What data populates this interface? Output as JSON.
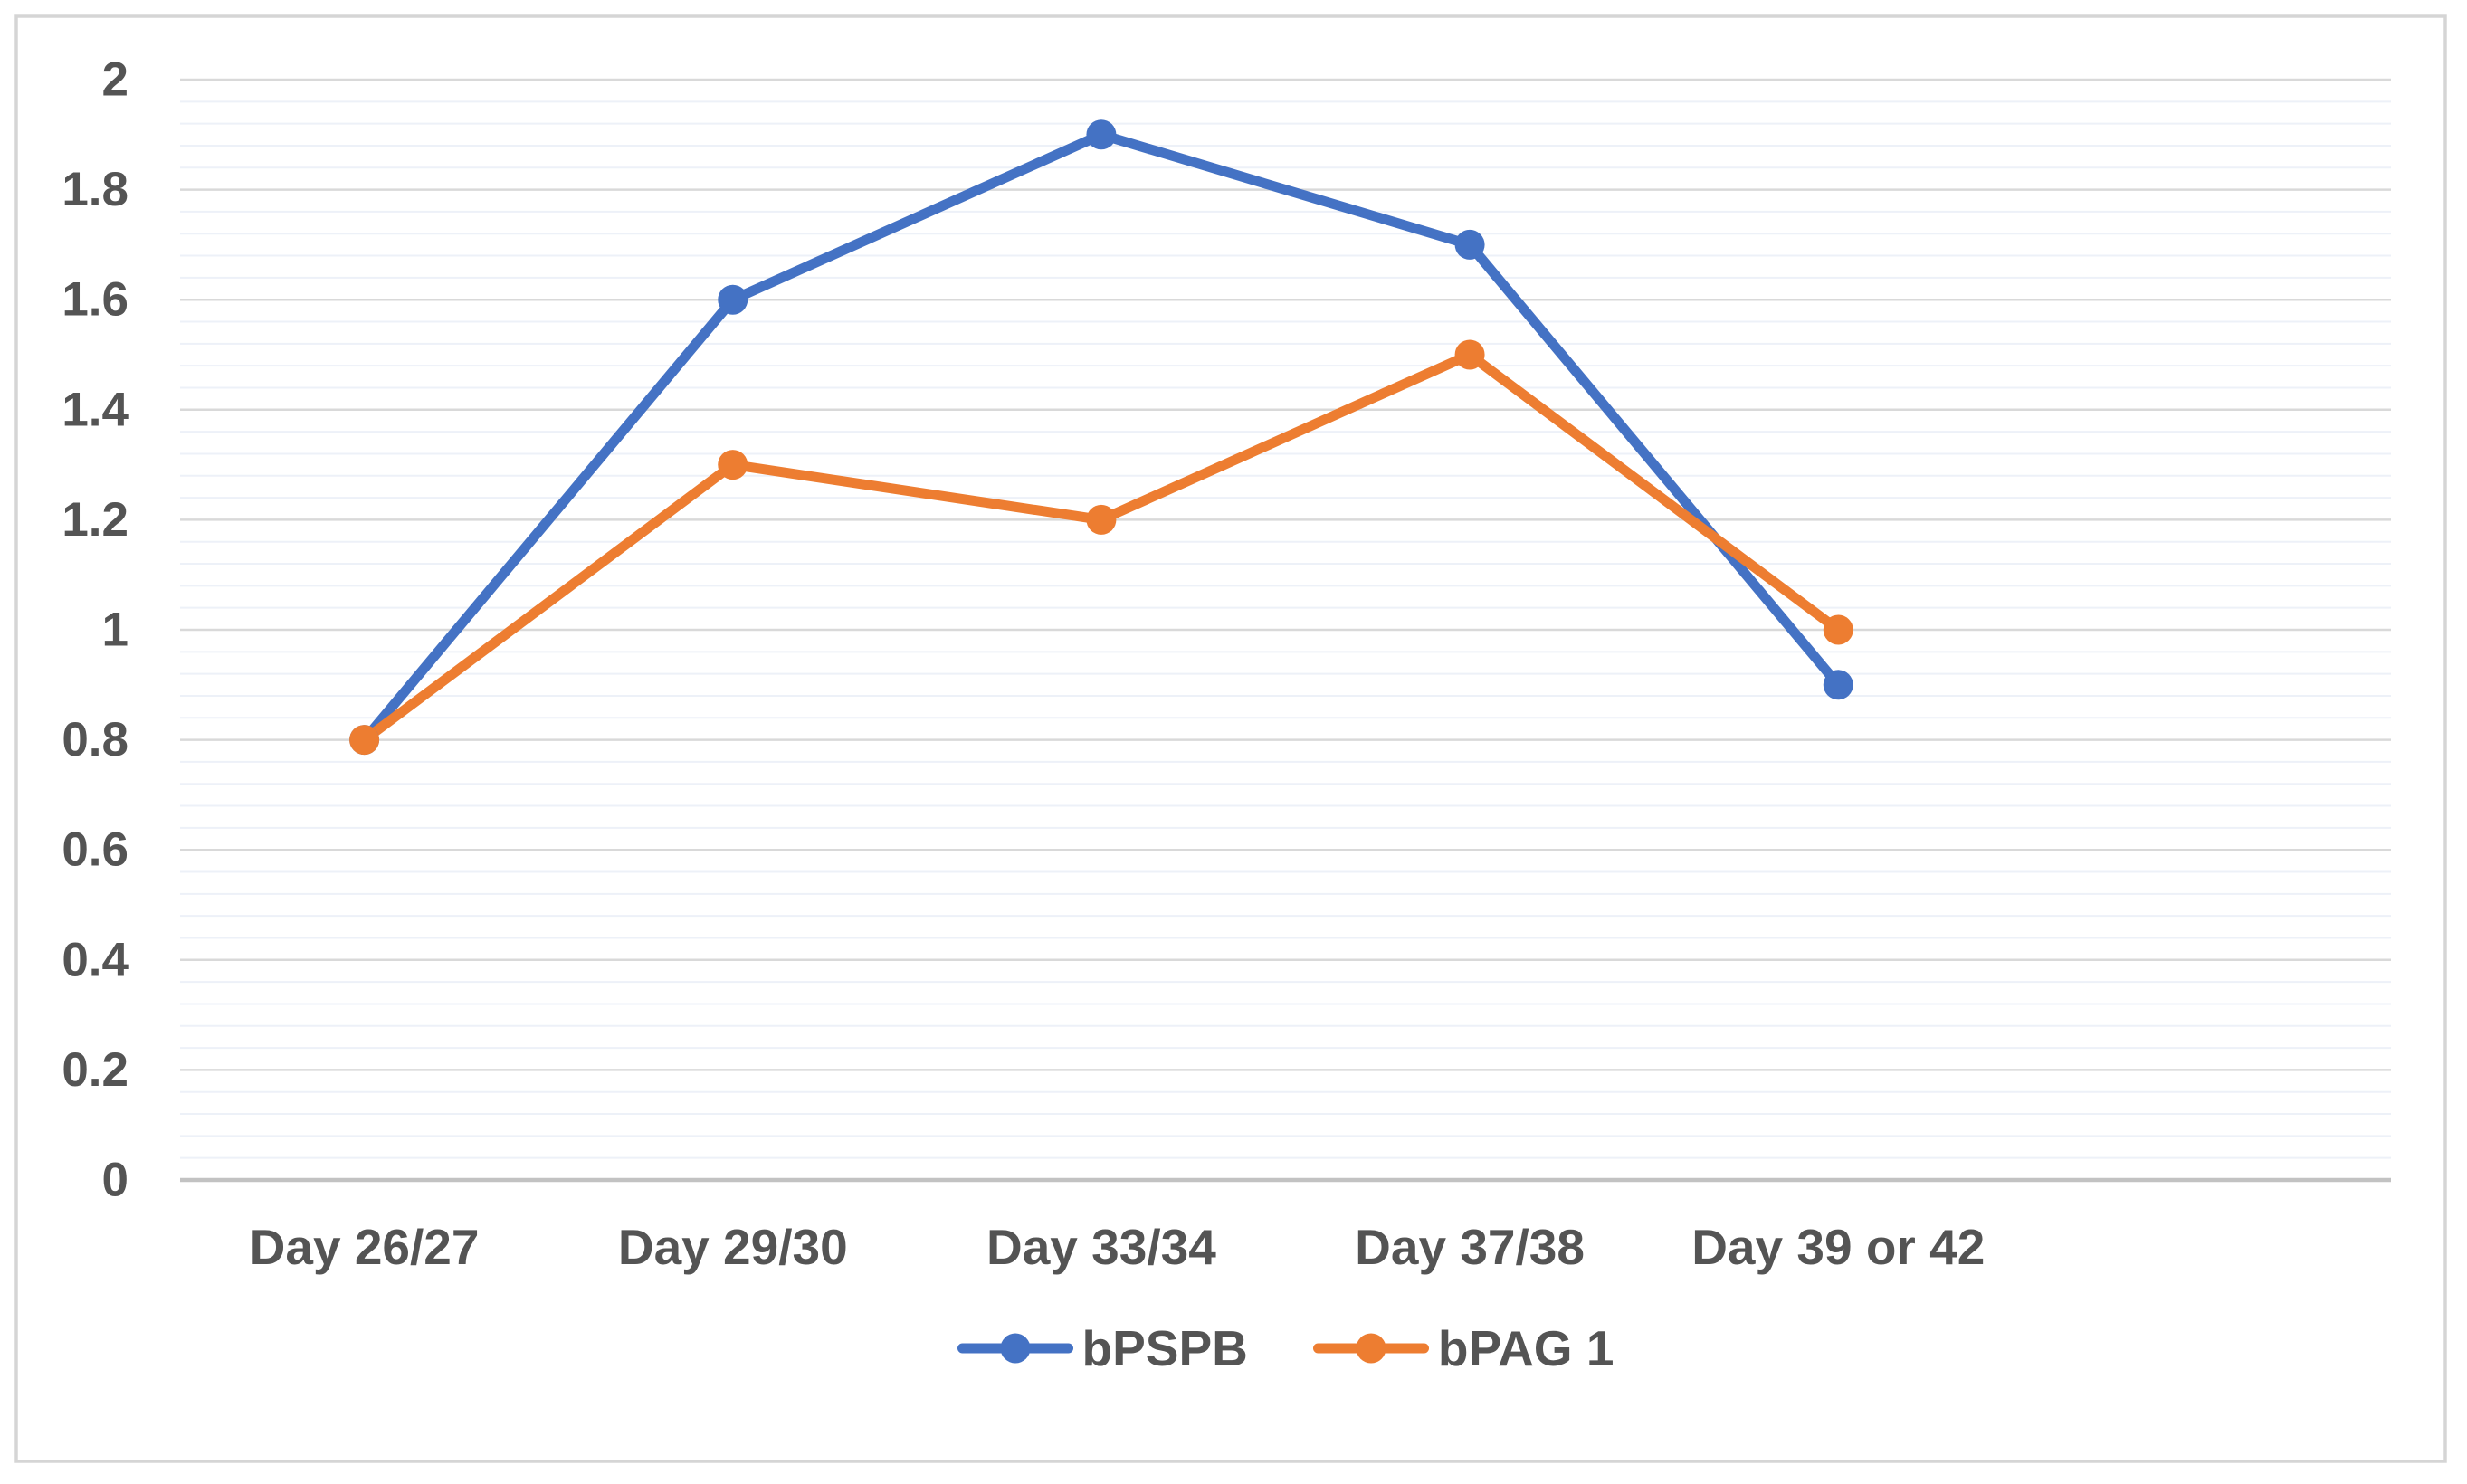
{
  "chart_data": {
    "type": "line",
    "title": "",
    "xlabel": "",
    "ylabel": "",
    "categories": [
      "Day 26/27",
      "Day 29/30",
      "Day 33/34",
      "Day 37/38",
      "Day 39 or 42"
    ],
    "series": [
      {
        "name": "bPSPB",
        "color": "#4472C4",
        "values": [
          0.8,
          1.6,
          1.9,
          1.7,
          0.9
        ]
      },
      {
        "name": "bPAG 1",
        "color": "#ED7D31",
        "values": [
          0.8,
          1.3,
          1.2,
          1.5,
          1.0
        ]
      }
    ],
    "ylim": [
      0,
      2
    ],
    "y_major_step": 0.2,
    "y_minor_step": 0.04,
    "y_tick_labels": [
      "0",
      "0.2",
      "0.4",
      "0.6",
      "0.8",
      "1",
      "1.2",
      "1.4",
      "1.6",
      "1.8",
      "2"
    ],
    "grid": "horizontal major and faint minor gridlines",
    "legend_position": "bottom-center",
    "legend": [
      "bPSPB",
      "bPAG 1"
    ],
    "x_slot_count": 6
  },
  "colors": {
    "figure_border": "#d5d5d5",
    "major_gridline": "#d9d9d9",
    "minor_gridline": "#edf1f8",
    "axis_line": "#c2c2c2",
    "label_text": "#545454",
    "background": "#ffffff"
  }
}
